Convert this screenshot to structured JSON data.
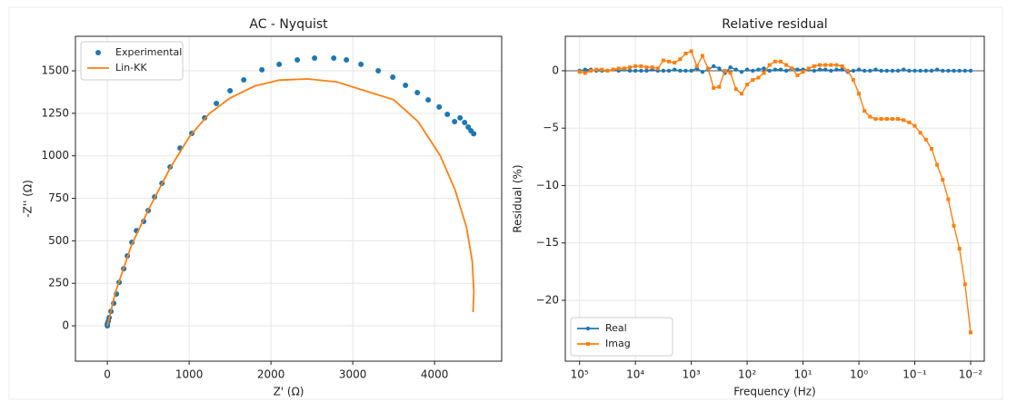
{
  "chart_data": [
    {
      "type": "line",
      "title": "AC - Nyquist",
      "xlabel": "Z' (Ω)",
      "ylabel": "-Z'' (Ω)",
      "xlim": [
        -390,
        4820
      ],
      "ylim": [
        -208,
        1703
      ],
      "xticks": [
        0,
        1000,
        2000,
        3000,
        4000
      ],
      "yticks": [
        0,
        250,
        500,
        750,
        1000,
        1250,
        1500
      ],
      "grid": true,
      "legend": "upper left",
      "series": [
        {
          "name": "Experimental",
          "color": "#1f77b4",
          "line": false,
          "marker": "circle",
          "x": [
            0,
            0,
            11,
            22,
            44,
            78,
            111,
            144,
            200,
            244,
            300,
            356,
            444,
            500,
            578,
            667,
            767,
            889,
            1033,
            1189,
            1333,
            1500,
            1667,
            1889,
            2100,
            2322,
            2533,
            2767,
            2922,
            3100,
            3311,
            3489,
            3644,
            3789,
            3922,
            4056,
            4156,
            4244,
            4311,
            4367,
            4411,
            4444,
            4478
          ],
          "values": [
            0,
            11,
            27,
            48,
            85,
            133,
            187,
            256,
            336,
            411,
            491,
            560,
            614,
            678,
            758,
            838,
            934,
            1046,
            1132,
            1223,
            1308,
            1383,
            1447,
            1506,
            1538,
            1564,
            1575,
            1575,
            1564,
            1538,
            1500,
            1463,
            1415,
            1372,
            1329,
            1287,
            1244,
            1201,
            1223,
            1196,
            1169,
            1148,
            1130
          ]
        },
        {
          "name": "Lin-KK",
          "color": "#ff7f0e",
          "line": true,
          "marker": "none",
          "x": [
            0,
            100,
            300,
            500,
            770,
            1000,
            1250,
            1500,
            1800,
            2100,
            2450,
            2800,
            3100,
            3500,
            3800,
            4070,
            4250,
            4390,
            4460,
            4480,
            4470
          ],
          "values": [
            0,
            200,
            480,
            680,
            930,
            1110,
            1250,
            1340,
            1410,
            1445,
            1452,
            1435,
            1390,
            1330,
            1200,
            1000,
            800,
            580,
            380,
            200,
            80
          ]
        }
      ]
    },
    {
      "type": "line",
      "title": "Relative residual",
      "xlabel": "Frequency (Hz)",
      "ylabel": "Residual (%)",
      "xscale": "log",
      "xlim": [
        180000,
        0.0057
      ],
      "ylim": [
        -25.3,
        3.0
      ],
      "xticks": [
        {
          "value": 100000,
          "label": "10⁵"
        },
        {
          "value": 10000,
          "label": "10⁴"
        },
        {
          "value": 1000,
          "label": "10³"
        },
        {
          "value": 100,
          "label": "10²"
        },
        {
          "value": 10,
          "label": "10¹"
        },
        {
          "value": 1,
          "label": "10⁰"
        },
        {
          "value": 0.1,
          "label": "10⁻¹"
        },
        {
          "value": 0.01,
          "label": "10⁻²"
        }
      ],
      "yticks": [
        {
          "value": -20,
          "label": "−20"
        },
        {
          "value": -15,
          "label": "−15"
        },
        {
          "value": -10,
          "label": "−10"
        },
        {
          "value": -5,
          "label": "−5"
        },
        0
      ],
      "hlines": [
        0
      ],
      "grid": true,
      "legend": "lower left",
      "x": [
        100000,
        79433,
        63096,
        50119,
        39811,
        31623,
        25119,
        19953,
        15849,
        12589,
        10000,
        7943,
        6310,
        5012,
        3981,
        3162,
        2512,
        1995,
        1585,
        1259,
        1000,
        794.3,
        631,
        501.2,
        398.1,
        316.2,
        251.2,
        199.5,
        158.5,
        125.9,
        100,
        79.43,
        63.1,
        50.12,
        39.81,
        31.62,
        25.12,
        19.95,
        15.85,
        12.59,
        10,
        7.943,
        6.31,
        5.012,
        3.981,
        3.162,
        2.512,
        1.995,
        1.585,
        1.259,
        1,
        0.7943,
        0.631,
        0.5012,
        0.3981,
        0.3162,
        0.2512,
        0.1995,
        0.1585,
        0.1259,
        0.1,
        0.07943,
        0.0631,
        0.05012,
        0.03981,
        0.03162,
        0.02512,
        0.01995,
        0.01585,
        0.01259,
        0.01
      ],
      "series": [
        {
          "name": "Real",
          "color": "#1f77b4",
          "line": true,
          "marker": "circle",
          "values": [
            0,
            0.1,
            0.1,
            0,
            0,
            0,
            0.1,
            0,
            0.1,
            0,
            0,
            0,
            0,
            0.1,
            0,
            0,
            0,
            0.1,
            0,
            0,
            0,
            0.2,
            -0.1,
            0.1,
            0.4,
            0.2,
            -0.2,
            0.3,
            0.1,
            -0.1,
            0.1,
            0,
            0.1,
            0.2,
            0,
            0.1,
            0.1,
            0,
            0.2,
            0.1,
            0.1,
            0.1,
            0,
            0.1,
            0.1,
            0,
            0.1,
            0.1,
            -0.1,
            0,
            0.1,
            0,
            0,
            0.1,
            0,
            0,
            0,
            0,
            0.1,
            0,
            0,
            0,
            0,
            0,
            0.1,
            0,
            0,
            0,
            0,
            0,
            0
          ]
        },
        {
          "name": "Imag",
          "color": "#ff7f0e",
          "line": true,
          "marker": "square",
          "values": [
            -0.1,
            -0.2,
            0,
            0.1,
            0.1,
            0,
            0.1,
            0.2,
            0.2,
            0.3,
            0.4,
            0.4,
            0.3,
            0.3,
            0.2,
            0.9,
            0.8,
            0.7,
            1.0,
            1.5,
            1.7,
            0.4,
            1.3,
            0.2,
            -1.5,
            -1.4,
            0,
            -0.2,
            -1.6,
            -2.0,
            -1.2,
            -0.8,
            -0.6,
            -0.2,
            0.5,
            0.8,
            0.8,
            0.5,
            0.2,
            -0.4,
            -0.1,
            0.2,
            0.4,
            0.5,
            0.5,
            0.5,
            0.5,
            0.4,
            0,
            -0.8,
            -2.0,
            -3.5,
            -4.0,
            -4.2,
            -4.2,
            -4.2,
            -4.2,
            -4.2,
            -4.3,
            -4.5,
            -4.8,
            -5.4,
            -6.0,
            -6.8,
            -8.2,
            -9.5,
            -11.2,
            -13.5,
            -15.5,
            -18.6,
            -22.8
          ]
        }
      ]
    }
  ]
}
